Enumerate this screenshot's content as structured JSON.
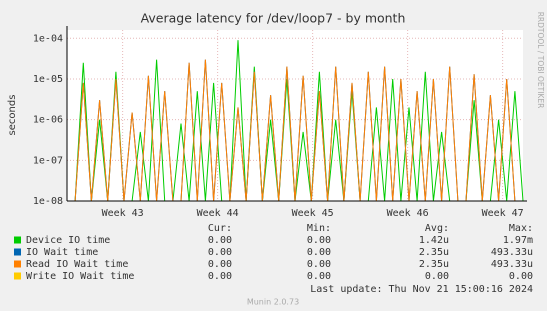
{
  "chart_data": {
    "type": "line",
    "title": "Average latency for /dev/loop7 - by month",
    "y_label": "seconds",
    "side_label": "RRDTOOL / TOBI OETIKER",
    "log_y": true,
    "grid": true,
    "x": [
      0.6,
      1.2,
      1.8,
      2.4,
      3,
      3.6,
      4.2,
      4.8,
      5.4,
      6,
      6.6,
      7.2,
      7.8,
      8.4,
      9,
      9.6,
      10.2,
      10.8,
      11.4,
      12,
      12.6,
      13.2,
      13.8,
      14.4,
      15,
      15.6,
      16.2,
      16.8,
      17.4,
      18,
      18.6,
      19.2,
      19.8,
      20.4,
      21,
      21.6,
      22.2,
      22.8,
      23.4,
      24,
      24.6,
      25.2,
      25.8,
      26.4,
      27,
      27.6,
      28.2,
      28.8,
      29.4,
      30,
      30.6,
      31.2,
      31.8,
      32.4,
      33,
      33.6
    ],
    "xlim": [
      0,
      33.6
    ],
    "xticks": [
      {
        "value": 4.1,
        "label": "Week 43"
      },
      {
        "value": 11.1,
        "label": "Week 44"
      },
      {
        "value": 18.1,
        "label": "Week 45"
      },
      {
        "value": 25.1,
        "label": "Week 46"
      },
      {
        "value": 32.1,
        "label": "Week 47"
      }
    ],
    "ylim": [
      1e-08,
      0.00016
    ],
    "yticks": [
      {
        "value": 1e-08,
        "label": "1e-08"
      },
      {
        "value": 1e-07,
        "label": "1e-07"
      },
      {
        "value": 1e-06,
        "label": "1e-06"
      },
      {
        "value": 1e-05,
        "label": "1e-05"
      },
      {
        "value": 0.0001,
        "label": "1e-04"
      }
    ],
    "legend_columns": [
      "Cur:",
      "Min:",
      "Avg:",
      "Max:"
    ],
    "series": [
      {
        "name": "Device IO time",
        "color": "#00cc00",
        "stats": [
          "0.00",
          "0.00",
          "1.42u",
          "1.97m"
        ],
        "values": [
          1e-08,
          2.5e-05,
          1e-08,
          1e-06,
          1e-08,
          1.5e-05,
          1e-08,
          1e-08,
          5e-07,
          1e-08,
          3e-05,
          1e-08,
          1e-08,
          8e-07,
          1e-08,
          5e-06,
          1e-08,
          8e-06,
          1e-08,
          1e-08,
          9e-05,
          1e-08,
          2e-05,
          1e-08,
          1e-06,
          1e-08,
          1e-05,
          1e-08,
          5e-07,
          1e-08,
          1.5e-05,
          1e-08,
          1e-06,
          1e-08,
          5e-06,
          1e-08,
          1e-08,
          2e-06,
          1e-08,
          1e-05,
          1e-08,
          2e-06,
          1e-08,
          1.5e-05,
          1e-08,
          5e-07,
          1e-08,
          1e-08,
          1e-08,
          3e-06,
          1e-08,
          1e-08,
          1e-06,
          1e-08,
          5e-06,
          1e-08
        ]
      },
      {
        "name": "IO Wait time",
        "color": "#0066b3",
        "stats": [
          "0.00",
          "0.00",
          "2.35u",
          "493.33u"
        ],
        "values": [
          1e-08,
          8e-06,
          1e-08,
          3e-06,
          1e-08,
          1e-05,
          1e-08,
          1.5e-06,
          1e-08,
          1.2e-05,
          1e-08,
          5e-06,
          1e-08,
          1e-08,
          2.5e-05,
          1e-08,
          3e-05,
          1e-08,
          8e-06,
          1e-08,
          2e-06,
          1e-08,
          1.5e-05,
          1e-08,
          4e-06,
          1e-08,
          2e-05,
          1e-08,
          1.2e-05,
          1e-08,
          5e-06,
          1e-08,
          2e-05,
          1e-08,
          8e-06,
          1e-08,
          1.5e-05,
          1e-08,
          2e-05,
          1e-08,
          1e-05,
          1e-08,
          5e-06,
          1e-08,
          1e-05,
          1e-08,
          2e-05,
          1e-08,
          1e-08,
          1.3e-05,
          1e-08,
          4e-06,
          1e-08,
          1e-05,
          1e-08,
          1e-08
        ]
      },
      {
        "name": "Read IO Wait time",
        "color": "#ff8000",
        "stats": [
          "0.00",
          "0.00",
          "2.35u",
          "493.33u"
        ],
        "values": [
          1e-08,
          8e-06,
          1e-08,
          3e-06,
          1e-08,
          1e-05,
          1e-08,
          1.5e-06,
          1e-08,
          1.2e-05,
          1e-08,
          5e-06,
          1e-08,
          1e-08,
          2.5e-05,
          1e-08,
          3e-05,
          1e-08,
          8e-06,
          1e-08,
          2e-06,
          1e-08,
          1.5e-05,
          1e-08,
          4e-06,
          1e-08,
          2e-05,
          1e-08,
          1.2e-05,
          1e-08,
          5e-06,
          1e-08,
          2e-05,
          1e-08,
          8e-06,
          1e-08,
          1.5e-05,
          1e-08,
          2e-05,
          1e-08,
          1e-05,
          1e-08,
          5e-06,
          1e-08,
          1e-05,
          1e-08,
          2e-05,
          1e-08,
          1e-08,
          1.3e-05,
          1e-08,
          4e-06,
          1e-08,
          1e-05,
          1e-08,
          1e-08
        ]
      },
      {
        "name": "Write IO Wait time",
        "color": "#ffcc00",
        "stats": [
          "0.00",
          "0.00",
          "0.00",
          "0.00"
        ],
        "values": [
          null,
          null,
          null,
          null,
          null,
          null,
          null,
          null,
          null,
          null,
          null,
          null,
          null,
          null,
          null,
          null,
          null,
          null,
          null,
          null,
          null,
          null,
          null,
          null,
          null,
          null,
          null,
          null,
          null,
          null,
          null,
          null,
          null,
          null,
          null,
          null,
          null,
          null,
          null,
          null,
          null,
          null,
          null,
          null,
          null,
          null,
          null,
          null,
          null,
          null,
          null,
          null,
          null,
          null,
          null,
          null
        ]
      }
    ],
    "footer": "Last update: Thu Nov 21 15:00:16 2024",
    "generator": "Munin 2.0.73"
  }
}
